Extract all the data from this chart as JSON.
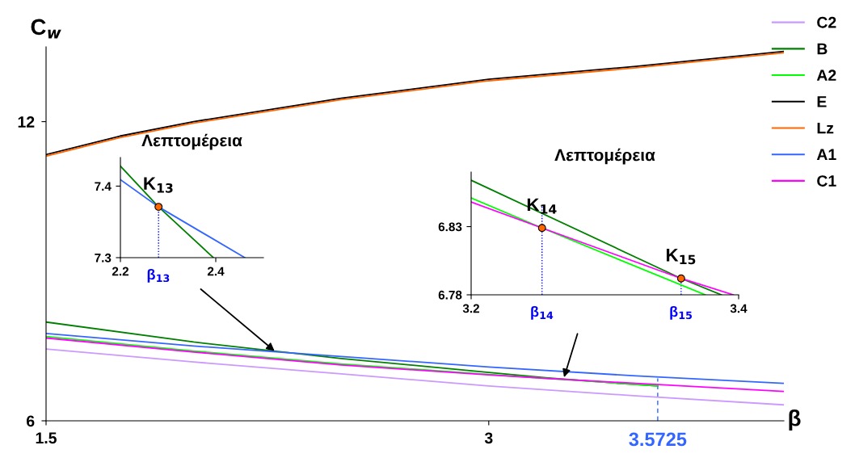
{
  "chart_data": [
    {
      "type": "line",
      "xlabel": "β",
      "ylabel": "C$_{w}$",
      "xlim": [
        1.5,
        4.0
      ],
      "ylim": [
        6,
        13.5
      ],
      "xticks": [
        1.5,
        3
      ],
      "yticks": [
        6,
        12
      ],
      "legend": "top right",
      "series": [
        {
          "name": "C2",
          "color": "#cc99ff",
          "x": [
            1.5,
            2.0,
            2.5,
            3.0,
            3.5,
            4.0
          ],
          "values": [
            7.44,
            7.18,
            6.94,
            6.7,
            6.5,
            6.32
          ]
        },
        {
          "name": "B",
          "color": "#008000",
          "x": [
            1.5,
            2.0,
            2.5,
            3.0,
            3.2,
            3.4,
            3.5725
          ],
          "values": [
            7.98,
            7.58,
            7.25,
            6.97,
            6.86,
            6.77,
            6.7
          ]
        },
        {
          "name": "A2",
          "color": "#00ff00",
          "x": [
            1.5,
            2.0,
            2.5,
            3.0,
            3.2,
            3.4,
            3.5725
          ],
          "values": [
            7.69,
            7.4,
            7.14,
            6.93,
            6.85,
            6.77,
            6.7
          ]
        },
        {
          "name": "E",
          "color": "#000000",
          "x": [
            1.5,
            1.75,
            2.0,
            2.5,
            3.0,
            3.5,
            4.0
          ],
          "values": [
            11.34,
            11.71,
            12.0,
            12.47,
            12.85,
            13.11,
            13.41
          ]
        },
        {
          "name": "Lz",
          "color": "#ff6600",
          "x": [
            1.5,
            1.75,
            2.0,
            2.5,
            3.0,
            3.5,
            4.0
          ],
          "values": [
            11.31,
            11.68,
            11.97,
            12.44,
            12.82,
            13.08,
            13.38
          ]
        },
        {
          "name": "A1",
          "color": "#3366ff",
          "x": [
            1.5,
            2.0,
            2.5,
            3.0,
            3.5,
            4.0
          ],
          "values": [
            7.75,
            7.5,
            7.29,
            7.08,
            6.9,
            6.75
          ]
        },
        {
          "name": "C1",
          "color": "#ff00ff",
          "x": [
            1.5,
            2.0,
            2.5,
            3.0,
            3.2,
            3.5,
            4.0
          ],
          "values": [
            7.66,
            7.38,
            7.12,
            6.92,
            6.85,
            6.75,
            6.59
          ]
        }
      ],
      "ref_lines": [
        {
          "axis": "x",
          "value": 3.5725,
          "label": "3.5725",
          "color": "#3366ff",
          "line_style": "dashed"
        }
      ]
    },
    {
      "type": "line",
      "title": "Λεπτομέρεια",
      "xlim": [
        2.2,
        2.5
      ],
      "ylim": [
        7.3,
        7.44
      ],
      "xticks": [
        2.2,
        2.4
      ],
      "yticks": [
        7.3,
        7.4
      ],
      "series": [
        {
          "color": "#008000",
          "x": [
            2.2,
            2.28,
            2.395
          ],
          "values": [
            7.428,
            7.371,
            7.3
          ]
        },
        {
          "color": "#3366ff",
          "x": [
            2.2,
            2.28,
            2.461
          ],
          "values": [
            7.409,
            7.371,
            7.3
          ]
        },
        {
          "type": "scatter",
          "marker": "circle",
          "color": "#ff6600",
          "x": [
            2.28
          ],
          "values": [
            7.371
          ]
        }
      ],
      "ref_lines": [
        {
          "axis": "x",
          "value": 2.28,
          "label": "β$_{13}$",
          "color": "#0000ff",
          "line_style": "dotted"
        }
      ],
      "annotations": [
        {
          "text": "K$_{13}$",
          "x": 2.28,
          "y": 7.371
        }
      ]
    },
    {
      "type": "line",
      "title": "Λεπτομέρεια",
      "xlim": [
        3.2,
        3.4
      ],
      "ylim": [
        6.78,
        6.87
      ],
      "xticks": [
        3.2,
        3.4
      ],
      "yticks": [
        6.78,
        6.83
      ],
      "series": [
        {
          "color": "#008000",
          "x": [
            3.2,
            3.357,
            3.387
          ],
          "values": [
            6.864,
            6.792,
            6.78
          ]
        },
        {
          "color": "#00ff00",
          "x": [
            3.2,
            3.253,
            3.375
          ],
          "values": [
            6.851,
            6.829,
            6.78
          ]
        },
        {
          "color": "#ff00ff",
          "x": [
            3.2,
            3.253,
            3.357,
            3.396
          ],
          "values": [
            6.848,
            6.829,
            6.792,
            6.78
          ]
        },
        {
          "type": "scatter",
          "marker": "circle",
          "color": "#ff6600",
          "x": [
            3.253,
            3.357
          ],
          "values": [
            6.829,
            6.792
          ]
        }
      ],
      "ref_lines": [
        {
          "axis": "x",
          "value": 3.253,
          "label": "β$_{14}$",
          "color": "#0000ff",
          "line_style": "dotted"
        },
        {
          "axis": "x",
          "value": 3.357,
          "label": "β$_{15}$",
          "color": "#0000ff",
          "line_style": "dotted"
        }
      ],
      "annotations": [
        {
          "text": "K$_{14}$",
          "x": 3.253,
          "y": 6.829
        },
        {
          "text": "K$_{15}$",
          "x": 3.357,
          "y": 6.792
        }
      ]
    }
  ]
}
